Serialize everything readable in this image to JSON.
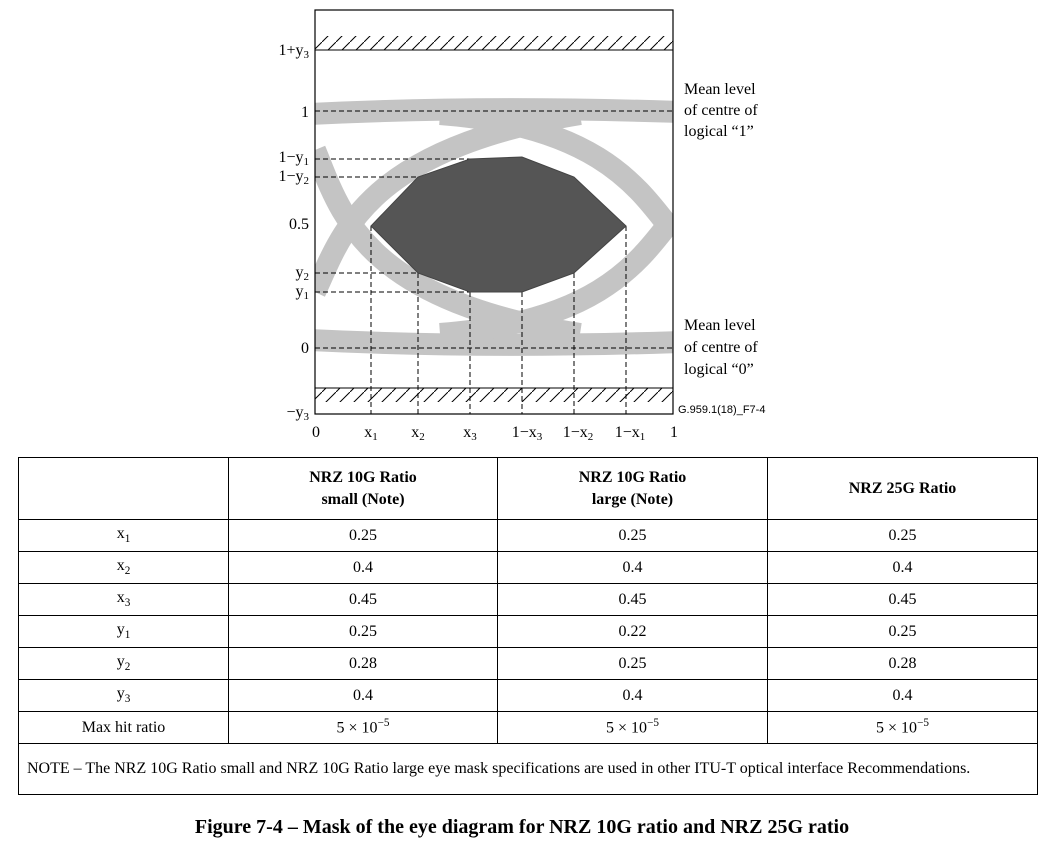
{
  "diagram": {
    "y_labels": {
      "top": "1+y3",
      "one": "1",
      "one_minus_y1": "1−y1",
      "one_minus_y2": "1−y2",
      "half": "0.5",
      "y2": "y2",
      "y1": "y1",
      "zero": "0",
      "bottom": "−y3"
    },
    "x_labels": {
      "zero": "0",
      "x1": "x1",
      "x2": "x2",
      "x3": "x3",
      "one_minus_x3": "1−x3",
      "one_minus_x2": "1−x2",
      "one_minus_x1": "1−x1",
      "one": "1"
    },
    "annotation_top": [
      "Mean level",
      "of centre of",
      "logical “1”"
    ],
    "annotation_bottom": [
      "Mean level",
      "of centre of",
      "logical “0”"
    ],
    "figure_id": "G.959.1(18)_F7-4",
    "colors": {
      "trace": "#c4c4c4",
      "mask": "#555555"
    }
  },
  "table": {
    "headers": [
      "",
      "NRZ 10G Ratio\nsmall (Note)",
      "NRZ 10G Ratio\nlarge (Note)",
      "NRZ 25G Ratio"
    ],
    "rows": [
      {
        "param": "x1",
        "values": [
          "0.25",
          "0.25",
          "0.25"
        ]
      },
      {
        "param": "x2",
        "values": [
          "0.4",
          "0.4",
          "0.4"
        ]
      },
      {
        "param": "x3",
        "values": [
          "0.45",
          "0.45",
          "0.45"
        ]
      },
      {
        "param": "y1",
        "values": [
          "0.25",
          "0.22",
          "0.25"
        ]
      },
      {
        "param": "y2",
        "values": [
          "0.28",
          "0.25",
          "0.28"
        ]
      },
      {
        "param": "y3",
        "values": [
          "0.4",
          "0.4",
          "0.4"
        ]
      },
      {
        "param": "Max hit ratio",
        "values": [
          "5 × 10−5",
          "5 × 10−5",
          "5 × 10−5"
        ]
      }
    ],
    "note": "NOTE – The NRZ 10G Ratio small and NRZ 10G Ratio large eye mask specifications are used in other ITU-T optical interface Recommendations."
  },
  "caption": "Figure 7-4 – Mask of the eye diagram for NRZ 10G ratio and NRZ 25G ratio"
}
